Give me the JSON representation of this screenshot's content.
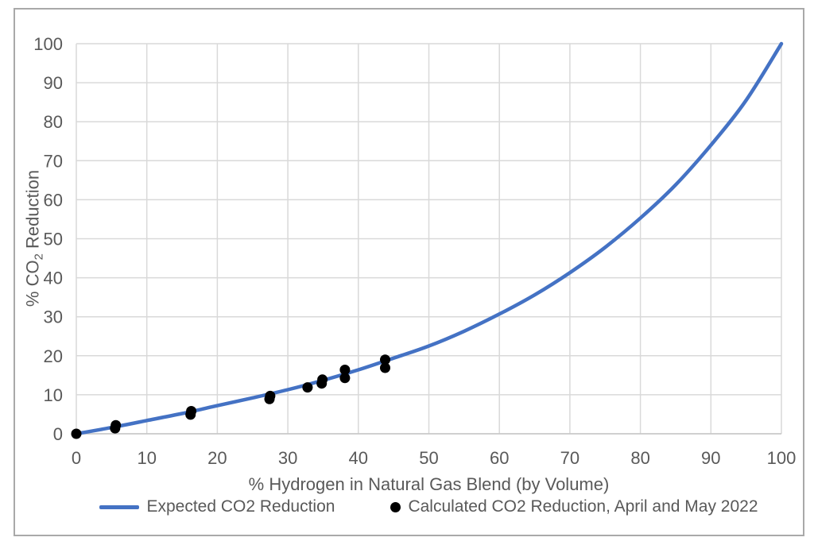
{
  "chart_data": {
    "type": "line",
    "title": "",
    "xlabel": "% Hydrogen in Natural Gas Blend (by Volume)",
    "ylabel": "% CO2 Reduction",
    "ylabel_parts": {
      "pre": "% CO",
      "sub": "2",
      "post": " Reduction"
    },
    "xlim": [
      0,
      100
    ],
    "ylim": [
      0,
      100
    ],
    "x_ticks": [
      0,
      10,
      20,
      30,
      40,
      50,
      60,
      70,
      80,
      90,
      100
    ],
    "y_ticks": [
      0,
      10,
      20,
      30,
      40,
      50,
      60,
      70,
      80,
      90,
      100
    ],
    "grid": true,
    "legend_position": "bottom",
    "series": [
      {
        "name": "Expected CO2 Reduction",
        "type": "line",
        "color": "#4472C4",
        "points": [
          [
            0,
            0
          ],
          [
            5,
            1.6
          ],
          [
            10,
            3.4
          ],
          [
            15,
            5.2
          ],
          [
            20,
            7.2
          ],
          [
            25,
            9.2
          ],
          [
            30,
            11.3
          ],
          [
            35,
            13.7
          ],
          [
            40,
            16.4
          ],
          [
            45,
            19.4
          ],
          [
            50,
            22.5
          ],
          [
            55,
            26.3
          ],
          [
            60,
            30.7
          ],
          [
            65,
            35.6
          ],
          [
            70,
            41.3
          ],
          [
            75,
            47.8
          ],
          [
            80,
            55.3
          ],
          [
            85,
            63.8
          ],
          [
            90,
            74.0
          ],
          [
            95,
            85.5
          ],
          [
            100,
            100
          ]
        ]
      },
      {
        "name": "Calculated CO2 Reduction, April and May 2022",
        "type": "scatter",
        "color": "#000000",
        "points": [
          [
            0,
            0
          ],
          [
            5.5,
            1.4
          ],
          [
            5.6,
            2.2
          ],
          [
            16.2,
            4.9
          ],
          [
            16.3,
            5.8
          ],
          [
            27.4,
            8.9
          ],
          [
            27.5,
            9.7
          ],
          [
            32.8,
            11.9
          ],
          [
            34.8,
            12.9
          ],
          [
            34.9,
            13.9
          ],
          [
            38.1,
            14.3
          ],
          [
            38.1,
            16.4
          ],
          [
            43.8,
            16.9
          ],
          [
            43.8,
            19.0
          ]
        ]
      }
    ],
    "colors": {
      "grid": "#d9d9d9",
      "axis": "#c6c6c6",
      "text": "#595959",
      "frame_border": "#a9a9a9",
      "background": "#ffffff"
    }
  }
}
